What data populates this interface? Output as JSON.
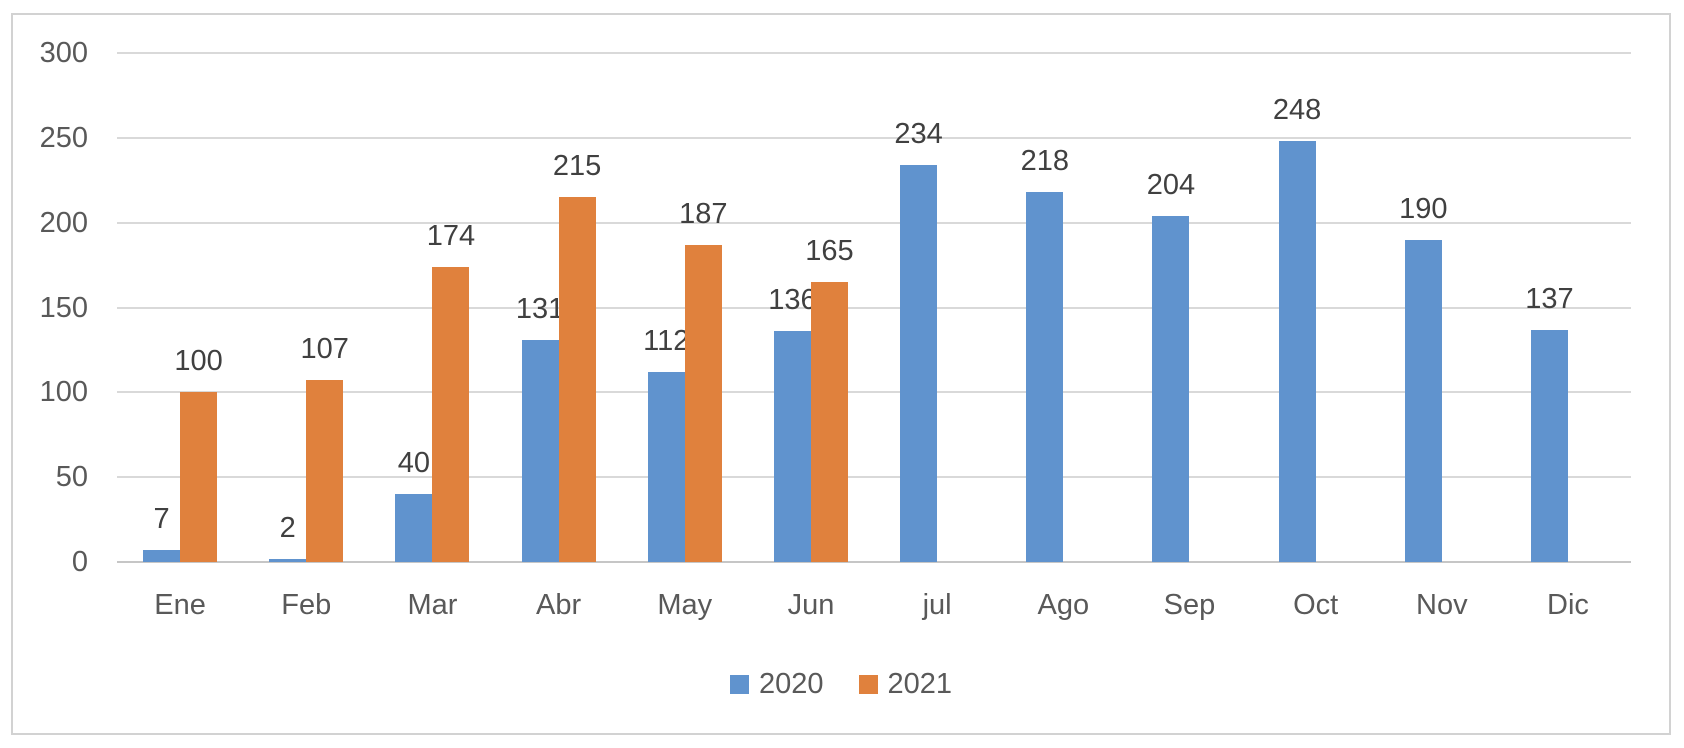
{
  "chart_data": {
    "type": "bar",
    "title": "",
    "xlabel": "",
    "ylabel": "",
    "categories": [
      "Ene",
      "Feb",
      "Mar",
      "Abr",
      "May",
      "Jun",
      "jul",
      "Ago",
      "Sep",
      "Oct",
      "Nov",
      "Dic"
    ],
    "series": [
      {
        "name": "2020",
        "color": "#6093CE",
        "values": [
          7,
          2,
          40,
          131,
          112,
          136,
          234,
          218,
          204,
          248,
          190,
          137
        ]
      },
      {
        "name": "2021",
        "color": "#E0813D",
        "values": [
          100,
          107,
          174,
          215,
          187,
          165,
          null,
          null,
          null,
          null,
          null,
          null
        ]
      }
    ],
    "ylim": [
      0,
      300
    ],
    "ytick_step": 50,
    "yticks": [
      0,
      50,
      100,
      150,
      200,
      250,
      300
    ],
    "grid": true,
    "data_labels": true,
    "legend_position": "bottom",
    "style": {
      "gridline_color": "#D9D9D9",
      "axis_line_color": "#C6C6C6",
      "axis_text_color": "#595959",
      "data_label_color": "#404040",
      "frame_border_color": "#D2D2D2",
      "background_color": "#FFFFFF"
    }
  }
}
